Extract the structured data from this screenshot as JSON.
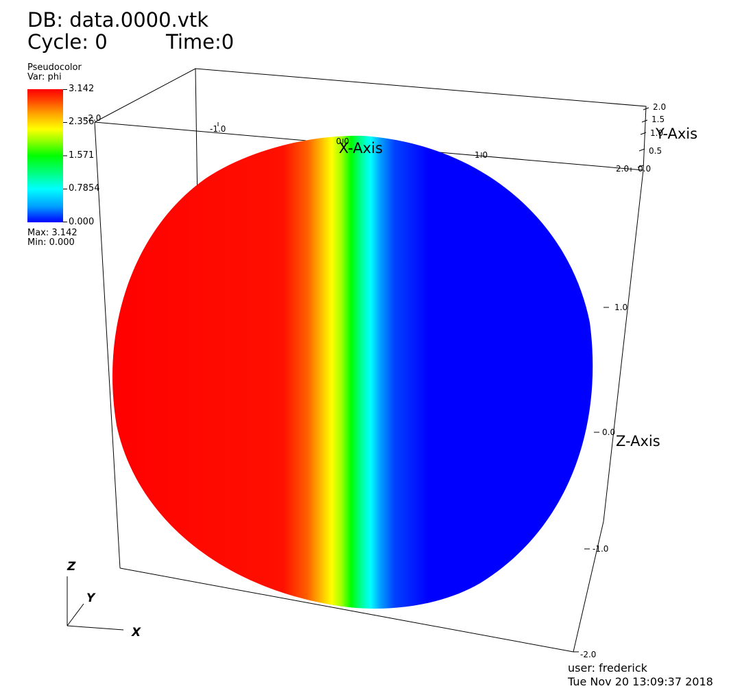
{
  "header": {
    "db": "DB: data.0000.vtk",
    "cycle": "Cycle: 0",
    "time": "Time:0"
  },
  "legend": {
    "plot_type": "Pseudocolor",
    "var": "Var: phi",
    "labels": [
      "3.142",
      "2.356",
      "1.571",
      "0.7854",
      "0.000"
    ],
    "max": "Max:  3.142",
    "min": "Min:  0.000"
  },
  "axes": {
    "x_title": "X-Axis",
    "y_title": "Y-Axis",
    "z_title": "Z-Axis",
    "x_ticks": [
      "-2.0",
      "-1.0",
      "0.0",
      "1.0",
      "2.0"
    ],
    "y_ticks": [
      "2.0",
      "1.5",
      "1.0",
      "0.5",
      "0.0"
    ],
    "z_ticks": [
      "1.0",
      "0.0",
      "-1.0",
      "-2.0"
    ]
  },
  "triad": {
    "x": "X",
    "y": "Y",
    "z": "Z"
  },
  "footer": {
    "user": "user: frederick",
    "date": "Tue Nov 20 13:09:37 2018"
  },
  "colors": {
    "left_half": "#ff0000",
    "right_half": "#0000ff",
    "background": "#ffffff"
  }
}
